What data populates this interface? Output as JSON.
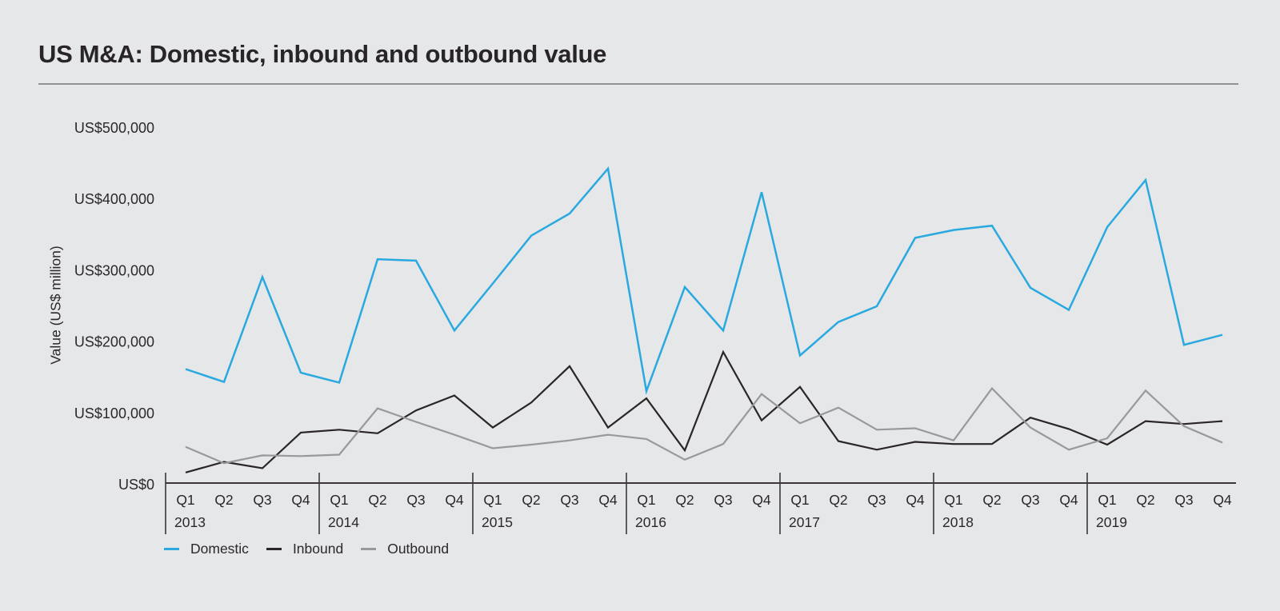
{
  "title": "US M&A: Domestic, inbound and outbound value",
  "y_axis_label": "Value (US$ million)",
  "colors": {
    "background": "#E6E7E8",
    "domestic": "#29A9E0",
    "inbound": "#2A2527",
    "outbound": "#98999B",
    "axis_line": "#3C383A",
    "tick_text": "#2B272C",
    "title_rule": "#909295"
  },
  "legend": {
    "items": [
      {
        "label": "Domestic",
        "color": "#29A9E0"
      },
      {
        "label": "Inbound",
        "color": "#2A2527"
      },
      {
        "label": "Outbound",
        "color": "#98999B"
      }
    ]
  },
  "chart_data": {
    "type": "line",
    "title": "US M&A: Domestic, inbound and outbound value",
    "ylabel": "Value (US$ million)",
    "ylim": [
      0,
      500000
    ],
    "grid": false,
    "legend_position": "bottom-left",
    "years": [
      "2013",
      "2014",
      "2015",
      "2016",
      "2017",
      "2018",
      "2019"
    ],
    "quarters_per_year": [
      "Q1",
      "Q2",
      "Q3",
      "Q4"
    ],
    "y_ticks": [
      {
        "label": "US$0",
        "value": 0
      },
      {
        "label": "US$100,000",
        "value": 100000
      },
      {
        "label": "US$200,000",
        "value": 200000
      },
      {
        "label": "US$300,000",
        "value": 300000
      },
      {
        "label": "US$400,000",
        "value": 400000
      },
      {
        "label": "US$500,000",
        "value": 500000
      }
    ],
    "series": [
      {
        "name": "Domestic",
        "color": "#29A9E0",
        "stroke_width": 2.5,
        "values": [
          162000,
          144000,
          291000,
          157000,
          143000,
          316000,
          314000,
          216000,
          282000,
          349000,
          380000,
          443000,
          131000,
          277000,
          216000,
          410000,
          181000,
          228000,
          250000,
          346000,
          357000,
          363000,
          276000,
          245000,
          361000,
          427000,
          196000,
          210000
        ]
      },
      {
        "name": "Inbound",
        "color": "#2A2527",
        "stroke_width": 2.2,
        "values": [
          17000,
          32000,
          23000,
          73000,
          77000,
          72000,
          104000,
          125000,
          80000,
          115000,
          166000,
          80000,
          121000,
          48000,
          186000,
          90000,
          137000,
          61000,
          49000,
          60000,
          57000,
          57000,
          94000,
          78000,
          56000,
          89000,
          85000,
          89000
        ]
      },
      {
        "name": "Outbound",
        "color": "#98999B",
        "stroke_width": 2.2,
        "values": [
          53000,
          30000,
          41000,
          40000,
          42000,
          107000,
          88000,
          70000,
          51000,
          56000,
          62000,
          70000,
          64000,
          35000,
          57000,
          127000,
          86000,
          108000,
          77000,
          79000,
          62000,
          135000,
          80000,
          49000,
          65000,
          132000,
          82000,
          59000
        ]
      }
    ]
  }
}
